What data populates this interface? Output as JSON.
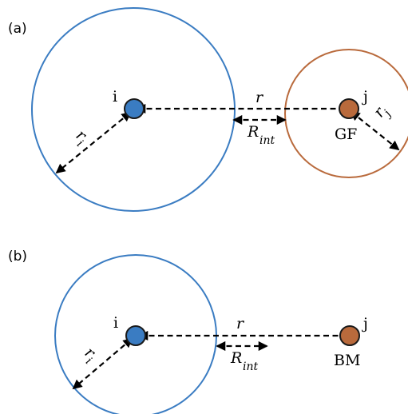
{
  "colors": {
    "blue_outline": "#3a7cc2",
    "blue_fill": "#3a7cc2",
    "orange_outline": "#b96a3c",
    "orange_fill": "#b96a3c",
    "arrow": "#000000"
  },
  "panel_a": {
    "label": "(a)",
    "particle_i": {
      "label": "i",
      "radius_label": "r",
      "radius_sub": "i"
    },
    "particle_j": {
      "label": "j",
      "type_label": "GF",
      "radius_label": "r",
      "radius_sub": "j"
    },
    "distance_label": "r",
    "interaction_label": "R",
    "interaction_sub": "int"
  },
  "panel_b": {
    "label": "(b)",
    "particle_i": {
      "label": "i",
      "radius_label": "r",
      "radius_sub": "i"
    },
    "particle_j": {
      "label": "j",
      "type_label": "BM"
    },
    "distance_label": "r",
    "interaction_label": "R",
    "interaction_sub": "int"
  }
}
